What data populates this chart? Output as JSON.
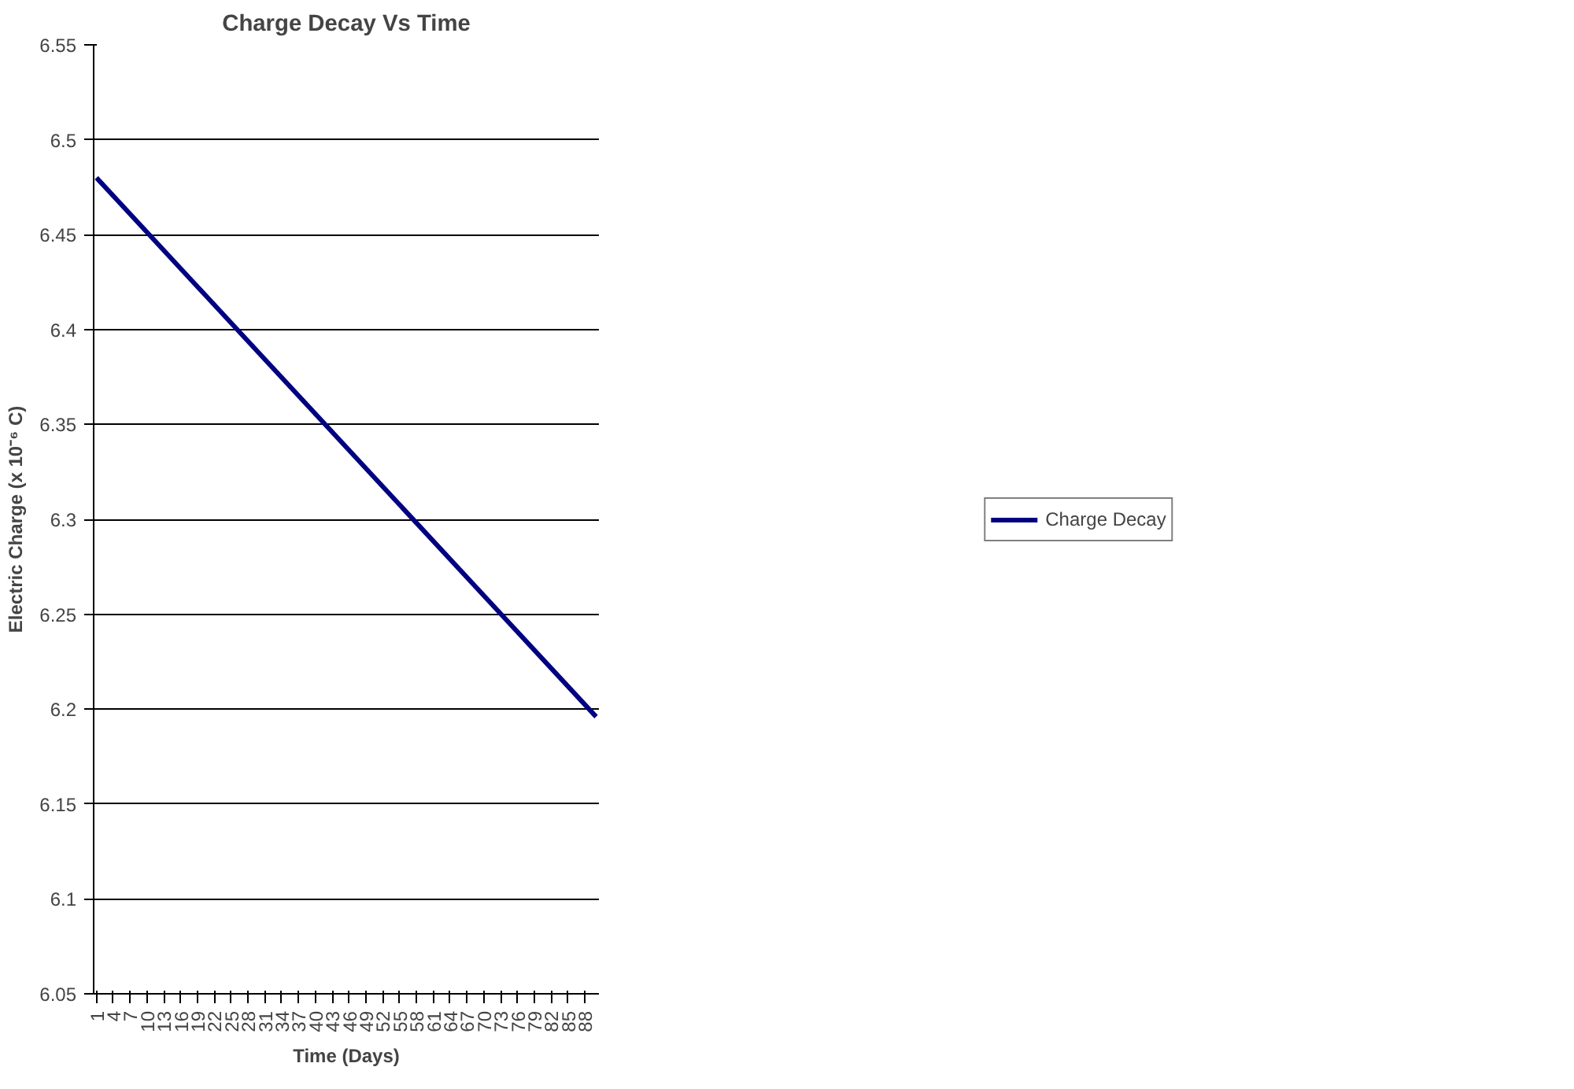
{
  "chart_data": {
    "type": "line",
    "title": "Charge Decay Vs Time",
    "xlabel": "Time (Days)",
    "ylabel": "Electric Charge (x 10⁻⁶ C)",
    "series": [
      {
        "name": "Charge Decay",
        "color": "#000080",
        "x": [
          1,
          90
        ],
        "values": [
          6.48,
          6.196
        ]
      }
    ],
    "xlim": [
      0.5,
      90.5
    ],
    "xticks": [
      1,
      4,
      7,
      10,
      13,
      16,
      19,
      22,
      25,
      28,
      31,
      34,
      37,
      40,
      43,
      46,
      49,
      52,
      55,
      58,
      61,
      64,
      67,
      70,
      73,
      76,
      79,
      82,
      85,
      88
    ],
    "ylim": [
      6.05,
      6.55
    ],
    "yticks": [
      6.05,
      6.1,
      6.15,
      6.2,
      6.25,
      6.3,
      6.35,
      6.4,
      6.45,
      6.5,
      6.55
    ],
    "grid": "y",
    "legend": "right",
    "marker": "none",
    "line_style": "solid"
  }
}
